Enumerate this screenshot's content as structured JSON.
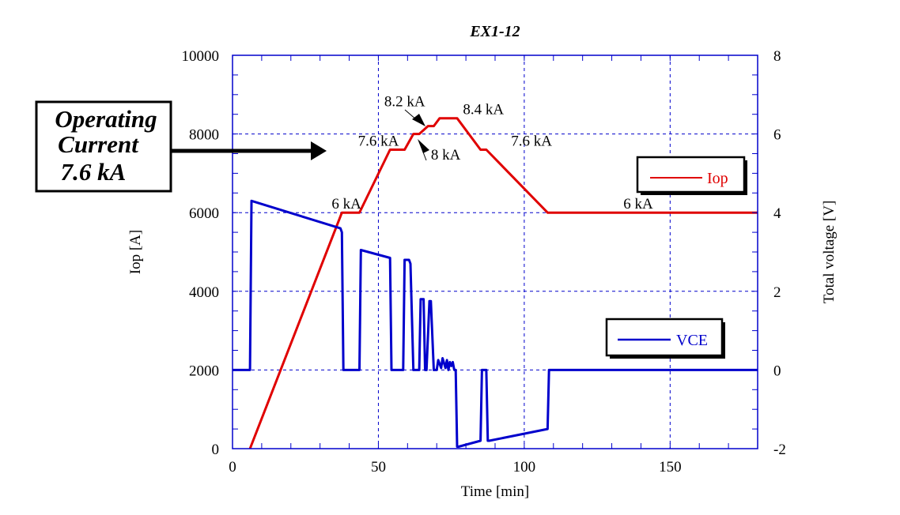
{
  "chart_data": {
    "type": "line",
    "title": "EX1-12",
    "xlabel": "Time [min]",
    "ylabel": "Iop [A]",
    "y2label": "Total voltage [V]",
    "xlim": [
      0,
      180
    ],
    "ylim": [
      0,
      10000
    ],
    "y2lim": [
      -2,
      8
    ],
    "xticks": [
      0,
      50,
      100,
      150
    ],
    "yticks": [
      0,
      2000,
      4000,
      6000,
      8000,
      10000
    ],
    "y2ticks": [
      -2,
      0,
      2,
      4,
      6,
      8
    ],
    "grid": true,
    "series": [
      {
        "name": "Iop",
        "axis": "left",
        "color": "#e00000",
        "x": [
          6,
          37.5,
          43.5,
          54,
          59,
          62,
          64,
          67,
          69,
          71,
          77,
          85,
          87,
          108,
          180
        ],
        "y": [
          0,
          6000,
          6000,
          7600,
          7600,
          8000,
          8000,
          8200,
          8200,
          8400,
          8400,
          7600,
          7600,
          6000,
          6000
        ]
      },
      {
        "name": "VCE",
        "axis": "right",
        "color": "#0000cc",
        "x": [
          0,
          6,
          6.5,
          37,
          37.5,
          38,
          39,
          43.5,
          44,
          54,
          54.5,
          55,
          58.5,
          59,
          60.5,
          61,
          62,
          64,
          64.5,
          65.5,
          66,
          66.5,
          67.5,
          68,
          69,
          70,
          70.5,
          71.5,
          72,
          73,
          73.5,
          74,
          74.5,
          75,
          75.5,
          76,
          76.5,
          77,
          77.5,
          85,
          85.5,
          86,
          87,
          87.5,
          88,
          108,
          108.5,
          109,
          180
        ],
        "y": [
          0,
          0,
          4.3,
          3.6,
          3.5,
          0,
          0,
          0,
          3.05,
          2.85,
          0,
          0,
          0,
          2.8,
          2.8,
          2.7,
          0,
          0,
          1.8,
          1.8,
          0,
          0,
          1.75,
          1.75,
          0,
          0,
          0.25,
          0.05,
          0.3,
          0.05,
          0.25,
          0,
          0.2,
          0.1,
          0.2,
          0,
          0,
          -1.95,
          -1.95,
          -1.8,
          0,
          0,
          0,
          -1.8,
          -1.8,
          -1.5,
          0,
          0,
          0
        ]
      }
    ],
    "legend": [
      {
        "label": "Iop",
        "color": "#e00000",
        "placement": "right"
      },
      {
        "label": "VCE",
        "color": "#0000cc",
        "placement": "lower-right"
      }
    ],
    "annotations": [
      {
        "text": "6 kA",
        "x": 34,
        "y": 6100
      },
      {
        "text": "7.6 kA",
        "x": 43,
        "y": 7700
      },
      {
        "text": "8.2 kA",
        "x": 52,
        "y": 8700
      },
      {
        "text": "8 kA",
        "x": 68,
        "y": 7350
      },
      {
        "text": "8.4 kA",
        "x": 79,
        "y": 8500
      },
      {
        "text": "7.6 kA",
        "x": 95.5,
        "y": 7700
      },
      {
        "text": "6 kA",
        "x": 134,
        "y": 6100
      }
    ],
    "callout": {
      "lines": [
        "Operating",
        "Current",
        "7.6 kA"
      ]
    }
  }
}
